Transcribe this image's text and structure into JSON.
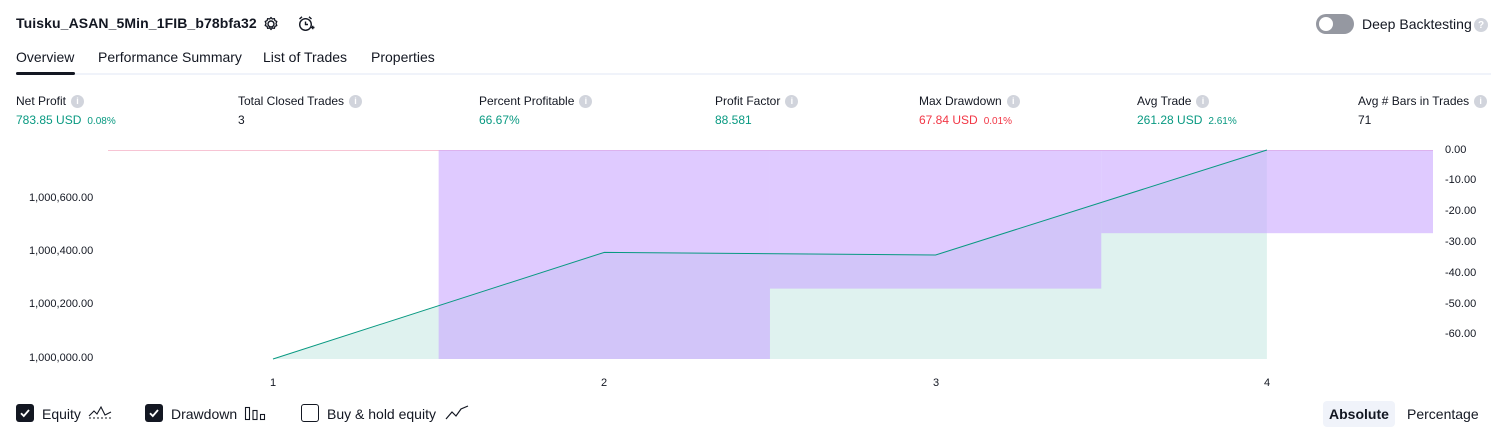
{
  "header": {
    "title": "Tuisku_ASAN_5Min_1FIB_b78bfa32",
    "deep_backtesting_label": "Deep Backtesting",
    "deep_backtesting_on": false
  },
  "tabs": [
    {
      "label": "Overview",
      "active": true
    },
    {
      "label": "Performance Summary",
      "active": false
    },
    {
      "label": "List of Trades",
      "active": false
    },
    {
      "label": "Properties",
      "active": false
    }
  ],
  "metrics": [
    {
      "label": "Net Profit",
      "value": "783.85 USD",
      "sub": "0.08%",
      "color": "#089981"
    },
    {
      "label": "Total Closed Trades",
      "value": "3",
      "sub": "",
      "color": "#131722"
    },
    {
      "label": "Percent Profitable",
      "value": "66.67%",
      "sub": "",
      "color": "#089981"
    },
    {
      "label": "Profit Factor",
      "value": "88.581",
      "sub": "",
      "color": "#089981"
    },
    {
      "label": "Max Drawdown",
      "value": "67.84 USD",
      "sub": "0.01%",
      "color": "#f23645"
    },
    {
      "label": "Avg Trade",
      "value": "261.28 USD",
      "sub": "2.61%",
      "color": "#089981"
    },
    {
      "label": "Avg # Bars in Trades",
      "value": "71",
      "sub": "",
      "color": "#131722"
    }
  ],
  "chart_data": {
    "type": "area",
    "x": [
      1,
      2,
      3,
      4
    ],
    "x_tick_labels": [
      "1",
      "2",
      "3",
      "4"
    ],
    "series": [
      {
        "name": "Equity",
        "axis": "left",
        "values": [
          1000000.0,
          1000400.0,
          1000390.0,
          1000783.85
        ],
        "color": "#089981"
      },
      {
        "name": "Drawdown",
        "axis": "right",
        "type": "bar",
        "values": [
          0,
          -67.84,
          -45.0,
          -27.0
        ],
        "color": "#c9a6ff"
      }
    ],
    "left_axis": {
      "tick_labels": [
        "1,000,000.00",
        "1,000,200.00",
        "1,000,400.00",
        "1,000,600.00"
      ],
      "ylim": [
        1000000.0,
        1000783.85
      ]
    },
    "right_axis": {
      "tick_labels": [
        "0.00",
        "-10.00",
        "-20.00",
        "-30.00",
        "-40.00",
        "-50.00",
        "-60.00"
      ],
      "ylim": [
        -67.84,
        0
      ]
    }
  },
  "footer": {
    "checkboxes": [
      {
        "label": "Equity",
        "checked": true,
        "icon": "equity-line-icon"
      },
      {
        "label": "Drawdown",
        "checked": true,
        "icon": "drawdown-bars-icon"
      },
      {
        "label": "Buy & hold equity",
        "checked": false,
        "icon": "buy-hold-line-icon"
      }
    ],
    "modes": [
      {
        "label": "Absolute",
        "active": true
      },
      {
        "label": "Percentage",
        "active": false
      }
    ]
  }
}
